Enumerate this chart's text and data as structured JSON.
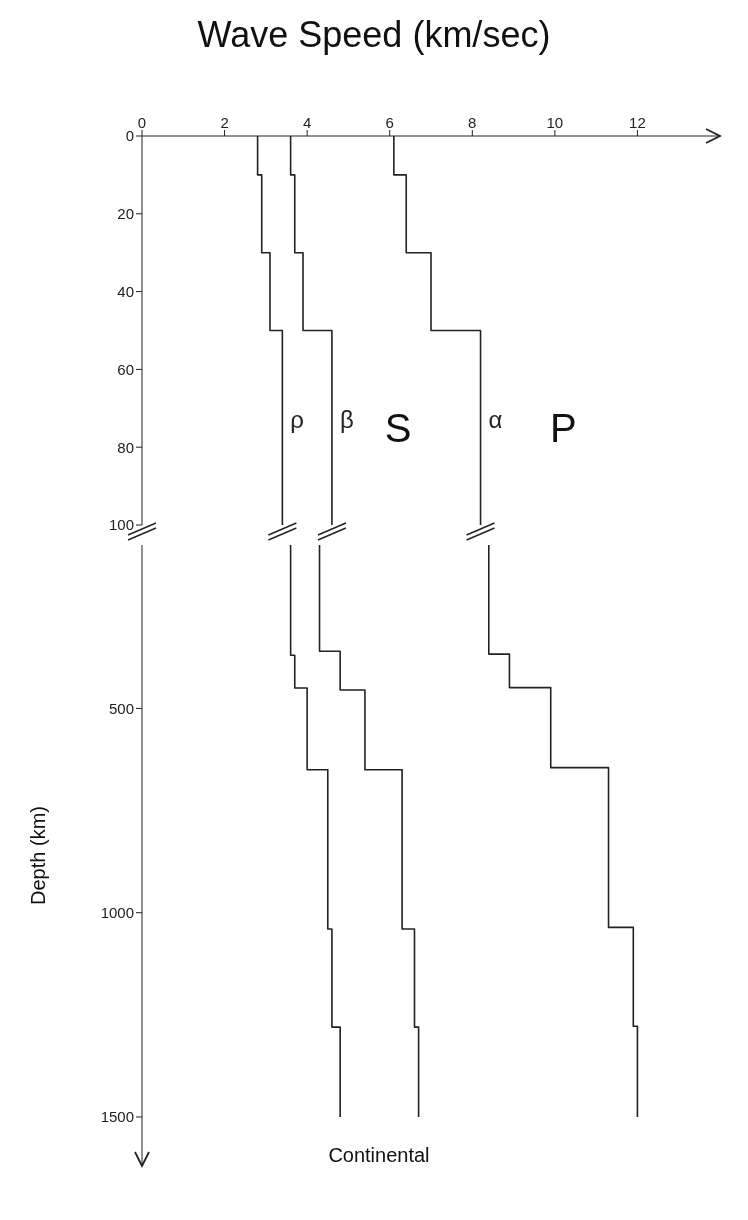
{
  "chart_data": [
    {
      "type": "line",
      "title": "Wave Speed (km/sec)",
      "xlim": [
        0,
        14
      ],
      "xticks": [
        0,
        2,
        4,
        6,
        8,
        10,
        12
      ],
      "ylim": [
        100,
        0
      ],
      "yticks": [
        0,
        20,
        40,
        60,
        80,
        100
      ],
      "series": [
        {
          "name": "ρ",
          "color": "#222222",
          "x": [
            2.8,
            2.8,
            2.9,
            2.9,
            3.1,
            3.1,
            3.4,
            3.4
          ],
          "values": [
            0,
            10,
            10,
            30,
            30,
            50,
            50,
            100
          ]
        },
        {
          "name": "β",
          "color": "#222222",
          "x": [
            3.6,
            3.6,
            3.7,
            3.7,
            3.9,
            3.9,
            4.6,
            4.6
          ],
          "values": [
            0,
            10,
            10,
            30,
            30,
            50,
            50,
            100
          ]
        },
        {
          "name": "α",
          "color": "#222222",
          "x": [
            6.1,
            6.1,
            6.4,
            6.4,
            7.0,
            7.0,
            8.2,
            8.2
          ],
          "values": [
            0,
            10,
            10,
            30,
            30,
            50,
            50,
            100
          ]
        }
      ],
      "annotations": [
        "S",
        "P"
      ]
    },
    {
      "type": "line",
      "ylabel": "Depth (km)",
      "xlim": [
        0,
        12
      ],
      "xticks": [
        0,
        2,
        4,
        6,
        8,
        10,
        12
      ],
      "ylim": [
        1620,
        100
      ],
      "yticks": [
        500,
        1000,
        1500
      ],
      "tick_labels": "y",
      "series": [
        {
          "color": "#222222",
          "x": [
            3.6,
            3.6,
            3.7,
            3.7,
            4.0,
            4.0,
            4.5,
            4.5,
            4.6,
            4.6,
            4.8,
            4.8
          ],
          "values": [
            100,
            370,
            370,
            450,
            450,
            650,
            650,
            1040,
            1040,
            1280,
            1280,
            1500
          ]
        },
        {
          "color": "#222222",
          "x": [
            4.3,
            4.3,
            4.8,
            4.8,
            5.4,
            5.4,
            6.3,
            6.3,
            6.6,
            6.6,
            6.7,
            6.7
          ],
          "values": [
            100,
            360,
            360,
            455,
            455,
            650,
            650,
            1040,
            1040,
            1280,
            1280,
            1500
          ]
        },
        {
          "color": "#222222",
          "x": [
            8.4,
            8.4,
            8.9,
            8.9,
            9.9,
            9.9,
            11.3,
            11.3,
            11.9,
            11.9,
            12.0,
            12.0
          ],
          "values": [
            100,
            367,
            367,
            449,
            449,
            645,
            645,
            1036,
            1036,
            1278,
            1278,
            1500
          ]
        }
      ],
      "annotations": [
        "Continental"
      ]
    }
  ]
}
